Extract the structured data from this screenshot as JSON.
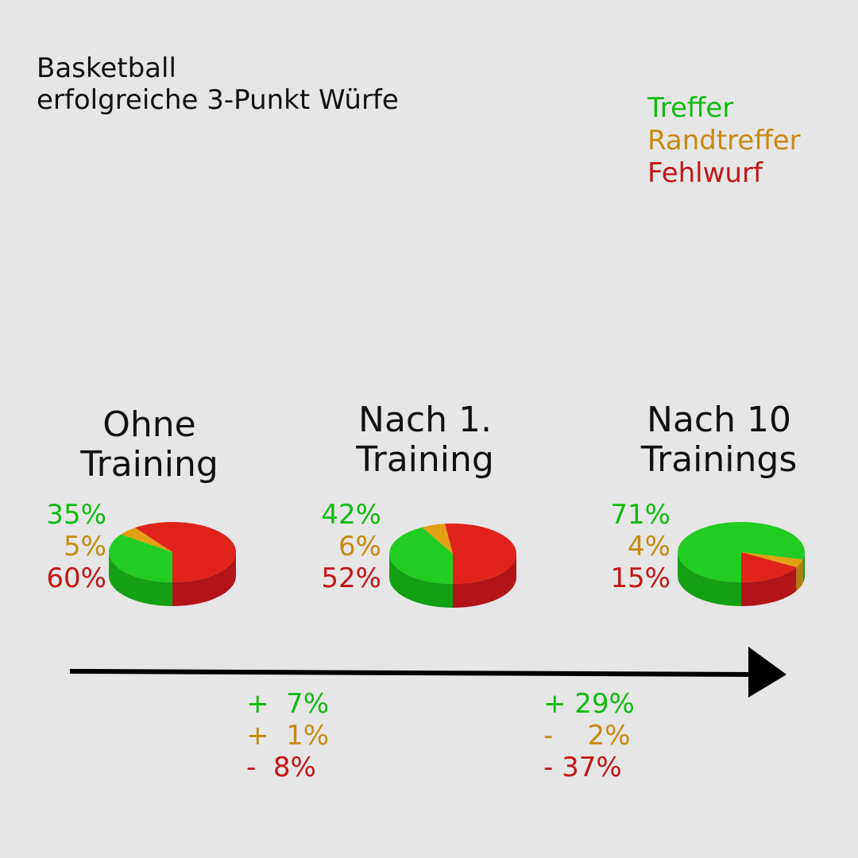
{
  "title": {
    "line1": "Basketball",
    "line2": "erfolgreiche 3-Punkt Würfe"
  },
  "legend": [
    {
      "label": "Treffer",
      "color": "#11bb11"
    },
    {
      "label": "Randtreffer",
      "color": "#c88a10"
    },
    {
      "label": "Fehlwurf",
      "color": "#c41616"
    }
  ],
  "colors": {
    "treffer_top": "#22cc22",
    "treffer_side": "#13a013",
    "rand_top": "#e2a012",
    "rand_side": "#b07f0e",
    "fehl_top": "#e0231a",
    "fehl_side": "#b3141a",
    "arrow": "#000000"
  },
  "chart_data": {
    "type": "pie",
    "series_names": [
      "Treffer",
      "Randtreffer",
      "Fehlwurf"
    ],
    "groups": [
      {
        "title_line1": "Ohne",
        "title_line2": "Training",
        "values": [
          35,
          5,
          60
        ],
        "labels": [
          "35%",
          "5%",
          "60%"
        ]
      },
      {
        "title_line1": "Nach 1.",
        "title_line2": "Training",
        "values": [
          42,
          6,
          52
        ],
        "labels": [
          "42%",
          "6%",
          "52%"
        ]
      },
      {
        "title_line1": "Nach 10",
        "title_line2": "Trainings",
        "values": [
          71,
          4,
          15
        ],
        "labels": [
          "71%",
          "4%",
          "15%"
        ]
      }
    ],
    "changes": [
      {
        "lines": [
          "+  7%",
          "+  1%",
          "-  8%"
        ]
      },
      {
        "lines": [
          "+ 29%",
          "-    2%",
          "- 37%"
        ]
      }
    ]
  }
}
